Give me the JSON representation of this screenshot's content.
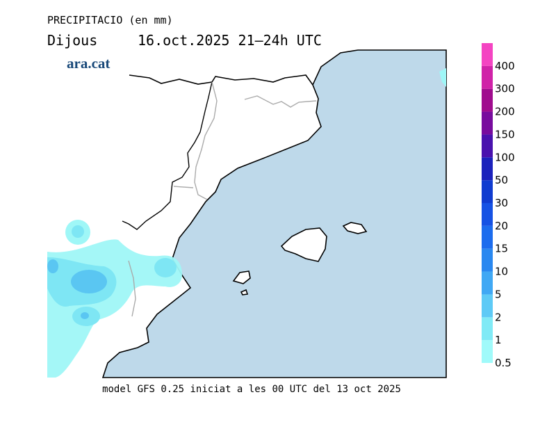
{
  "header": {
    "title": "PRECIPITACIO (en mm)",
    "day": "Dijous",
    "period": "16.oct.2025 21–24h UTC",
    "brand": "ara.cat"
  },
  "legend": {
    "levels": [
      "0.5",
      "1",
      "2",
      "5",
      "10",
      "15",
      "20",
      "30",
      "50",
      "100",
      "150",
      "200",
      "300",
      "400"
    ],
    "colors": [
      "#a0fafa",
      "#80eaf6",
      "#5ecaf6",
      "#40a8f4",
      "#2a88f0",
      "#1c6cee",
      "#1652e4",
      "#103cd0",
      "#1c22bc",
      "#4a12ae",
      "#780c9e",
      "#a00c8e",
      "#d022a8",
      "#f444c2"
    ]
  },
  "footer": "model GFS 0.25 iniciat a les 00 UTC del 13 oct 2025"
}
